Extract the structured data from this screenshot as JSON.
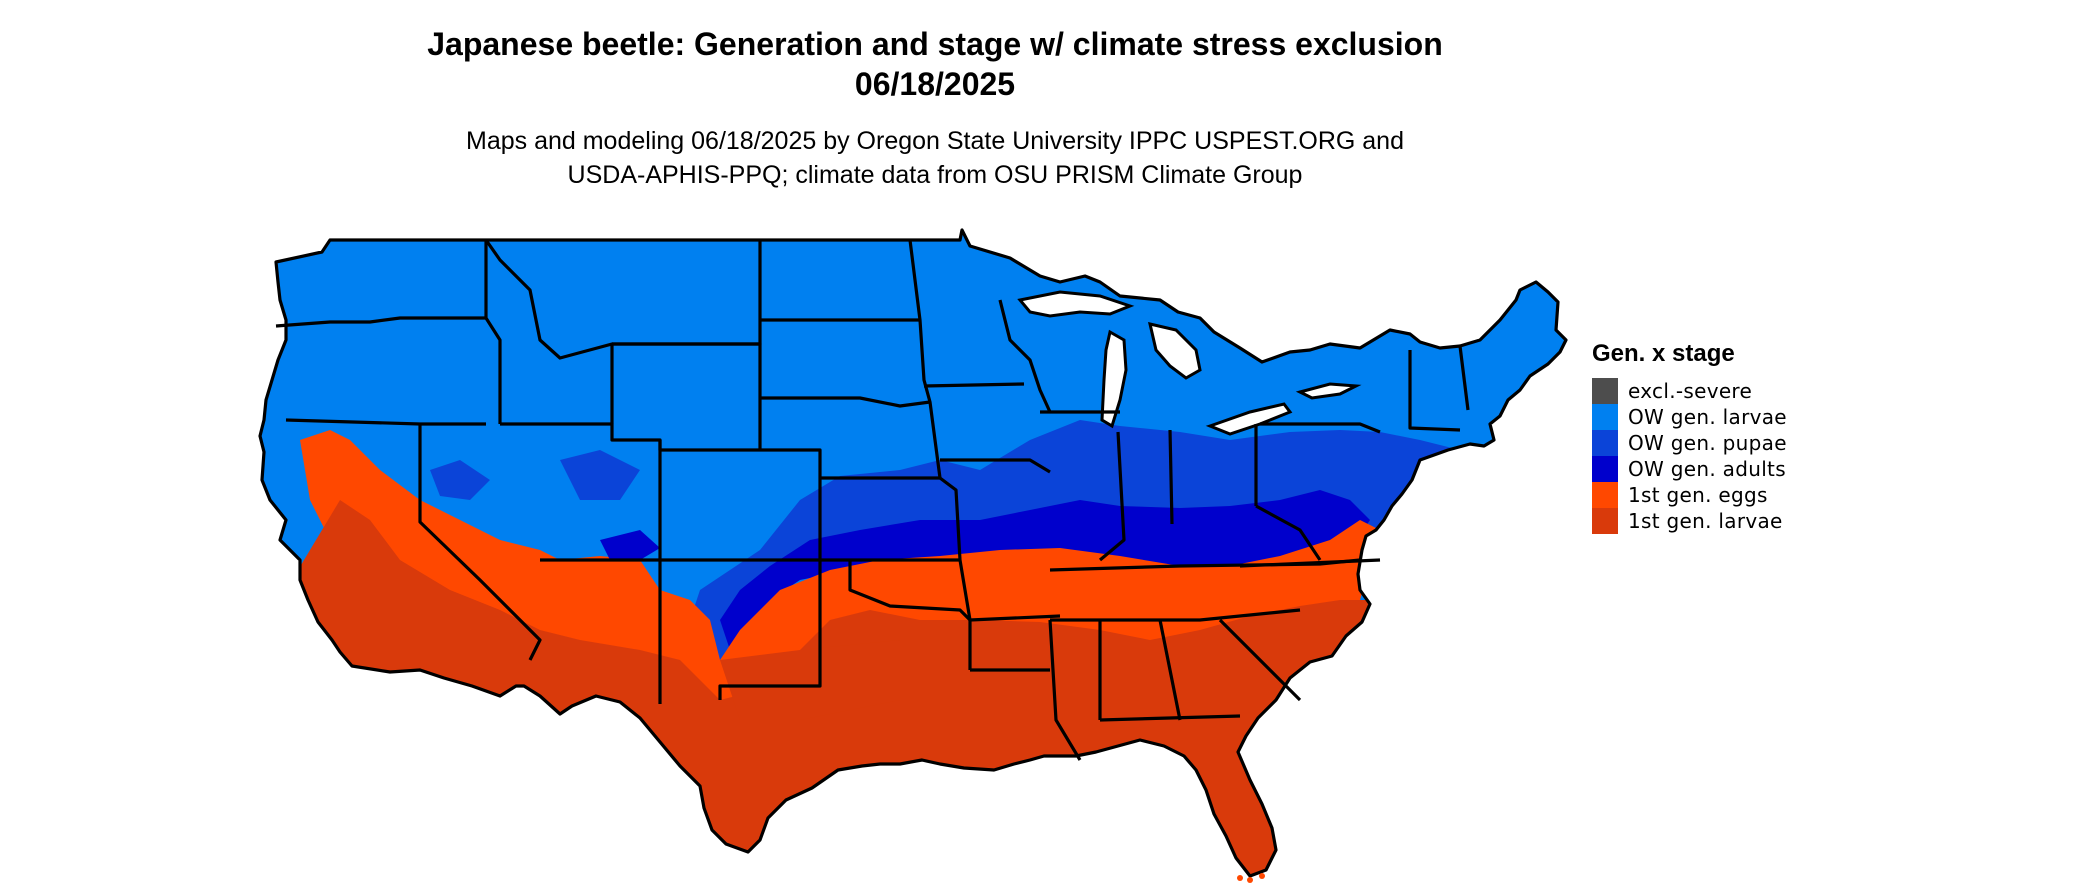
{
  "title": {
    "line1": "Japanese beetle: Generation and stage w/ climate stress exclusion",
    "line2": "06/18/2025"
  },
  "subtitle": {
    "line1": "Maps and modeling 06/18/2025 by Oregon State University IPPC USPEST.ORG and",
    "line2": "USDA-APHIS-PPQ; climate data from OSU PRISM Climate Group"
  },
  "legend": {
    "title": "Gen. x stage",
    "items": [
      {
        "label": "excl.-severe",
        "color": "#4d4d4d"
      },
      {
        "label": "OW gen. larvae",
        "color": "#0080f0"
      },
      {
        "label": "OW gen. pupae",
        "color": "#0b44d8"
      },
      {
        "label": "OW gen. adults",
        "color": "#0000cc"
      },
      {
        "label": "1st gen. eggs",
        "color": "#ff4800"
      },
      {
        "label": "1st gen. larvae",
        "color": "#d93a0b"
      }
    ]
  },
  "map": {
    "region": "Contiguous United States",
    "border_color": "#000000",
    "background": "#ffffff"
  }
}
